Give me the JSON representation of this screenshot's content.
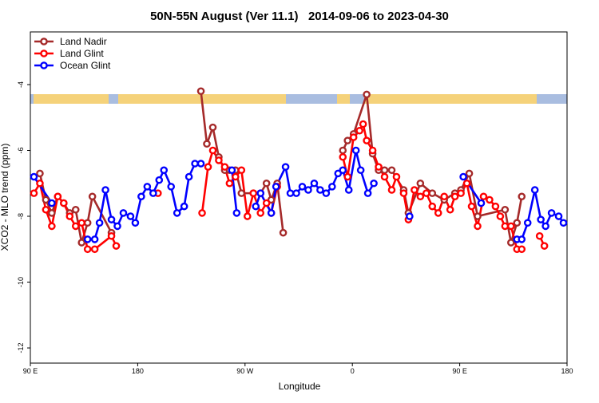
{
  "chart_data": {
    "type": "line",
    "title": "50N-55N August (Ver 11.1)   2014-09-06 to 2023-04-30",
    "x_label": "Longitude",
    "y_label": "XCO2 - MLO trend (ppm)",
    "xlim": [
      90,
      540
    ],
    "ylim": [
      -12.46,
      -2.4
    ],
    "xticks": [
      {
        "value": 90,
        "label": "90 E"
      },
      {
        "value": 180,
        "label": "180"
      },
      {
        "value": 270,
        "label": "90 W"
      },
      {
        "value": 360,
        "label": "0"
      },
      {
        "value": 450,
        "label": "90 E"
      },
      {
        "value": 540,
        "label": "180"
      }
    ],
    "yticks": [
      -12,
      -10,
      -8,
      -6,
      -4
    ],
    "legend": "top-left",
    "series": [
      {
        "name": "Land Nadir",
        "color": "#a52a2a",
        "x": [
          98,
          103,
          108,
          113,
          118,
          123,
          128,
          133,
          138,
          142,
          158,
          null,
          233,
          238,
          243,
          248,
          253,
          257,
          262,
          267,
          277,
          283,
          288,
          292,
          297,
          302,
          null,
          352,
          356,
          361,
          372,
          377,
          382,
          387,
          393,
          403,
          407,
          417,
          427,
          437,
          446,
          451,
          458,
          465,
          488,
          493,
          498,
          502
        ],
        "values": [
          -6.7,
          -7.5,
          -7.9,
          -7.4,
          -7.6,
          -7.9,
          -7.8,
          -8.8,
          -8.2,
          -7.4,
          -8.5,
          null,
          -4.2,
          -5.8,
          -5.3,
          -6.2,
          -6.6,
          -6.6,
          -6.6,
          -7.3,
          -7.3,
          -7.3,
          -7.0,
          -7.5,
          -7.0,
          -8.5,
          null,
          -6.0,
          -5.7,
          -5.5,
          -4.3,
          -6.1,
          -6.6,
          -6.6,
          -6.6,
          -7.2,
          -7.9,
          -7.0,
          -7.3,
          -7.5,
          -7.3,
          -7.2,
          -6.7,
          -8.0,
          -7.8,
          -8.8,
          -8.2,
          -7.4
        ]
      },
      {
        "name": "Land Glint",
        "color": "#ff0000",
        "x": [
          93,
          98,
          103,
          108,
          113,
          118,
          123,
          128,
          133,
          138,
          144,
          158,
          162,
          null,
          197,
          null,
          234,
          239,
          243,
          248,
          253,
          257,
          262,
          267,
          272,
          277,
          283,
          288,
          292,
          297,
          null,
          352,
          356,
          361,
          366,
          369,
          372,
          377,
          382,
          387,
          393,
          397,
          403,
          407,
          412,
          417,
          422,
          427,
          432,
          437,
          442,
          446,
          451,
          456,
          460,
          465,
          470,
          475,
          480,
          484,
          488,
          493,
          498,
          502,
          null,
          517,
          521
        ],
        "values": [
          -7.3,
          -7.0,
          -7.8,
          -8.3,
          -7.4,
          -7.6,
          -8.0,
          -8.3,
          -8.2,
          -9.0,
          -9.0,
          -8.6,
          -8.9,
          null,
          -7.3,
          null,
          -7.9,
          -6.5,
          -6.0,
          -6.3,
          -6.5,
          -7.0,
          -6.8,
          -6.6,
          -8.0,
          -7.3,
          -7.9,
          -7.6,
          -7.9,
          -7.1,
          null,
          -6.2,
          -6.8,
          -5.6,
          -5.4,
          -5.2,
          -5.7,
          -6.0,
          -6.5,
          -6.8,
          -7.2,
          -6.8,
          -7.3,
          -8.1,
          -7.2,
          -7.4,
          -7.3,
          -7.7,
          -7.9,
          -7.4,
          -7.8,
          -7.4,
          -7.3,
          -7.0,
          -7.7,
          -8.3,
          -7.4,
          -7.5,
          -7.7,
          -8.0,
          -8.3,
          -8.3,
          -9.0,
          -9.0,
          null,
          -8.6,
          -8.9
        ]
      },
      {
        "name": "Ocean Glint",
        "color": "#0000ff",
        "x": [
          93,
          108,
          null,
          138,
          144,
          148,
          153,
          158,
          163,
          168,
          174,
          178,
          183,
          188,
          193,
          198,
          202,
          208,
          213,
          219,
          223,
          228,
          233,
          null,
          259,
          263,
          null,
          279,
          283,
          292,
          296,
          304,
          308,
          313,
          318,
          323,
          328,
          333,
          338,
          343,
          348,
          352,
          357,
          363,
          367,
          373,
          378,
          null,
          408,
          null,
          453,
          468,
          null,
          498,
          502,
          507,
          513,
          518,
          522,
          527,
          533,
          537
        ],
        "values": [
          -6.8,
          -7.6,
          null,
          -8.7,
          -8.7,
          -8.2,
          -7.2,
          -8.1,
          -8.3,
          -7.9,
          -8.0,
          -8.2,
          -7.4,
          -7.1,
          -7.3,
          -6.9,
          -6.6,
          -7.1,
          -7.9,
          -7.7,
          -6.8,
          -6.4,
          -6.4,
          null,
          -6.6,
          -7.9,
          null,
          -7.7,
          -7.3,
          -7.9,
          -7.1,
          -6.5,
          -7.3,
          -7.3,
          -7.1,
          -7.2,
          -7.0,
          -7.2,
          -7.3,
          -7.1,
          -6.7,
          -6.6,
          -7.2,
          -6.0,
          -6.6,
          -7.3,
          -7.0,
          null,
          -8.0,
          null,
          -6.8,
          -7.6,
          null,
          -8.7,
          -8.7,
          -8.2,
          -7.2,
          -8.1,
          -8.3,
          -7.9,
          -8.0,
          -8.2
        ]
      }
    ]
  }
}
